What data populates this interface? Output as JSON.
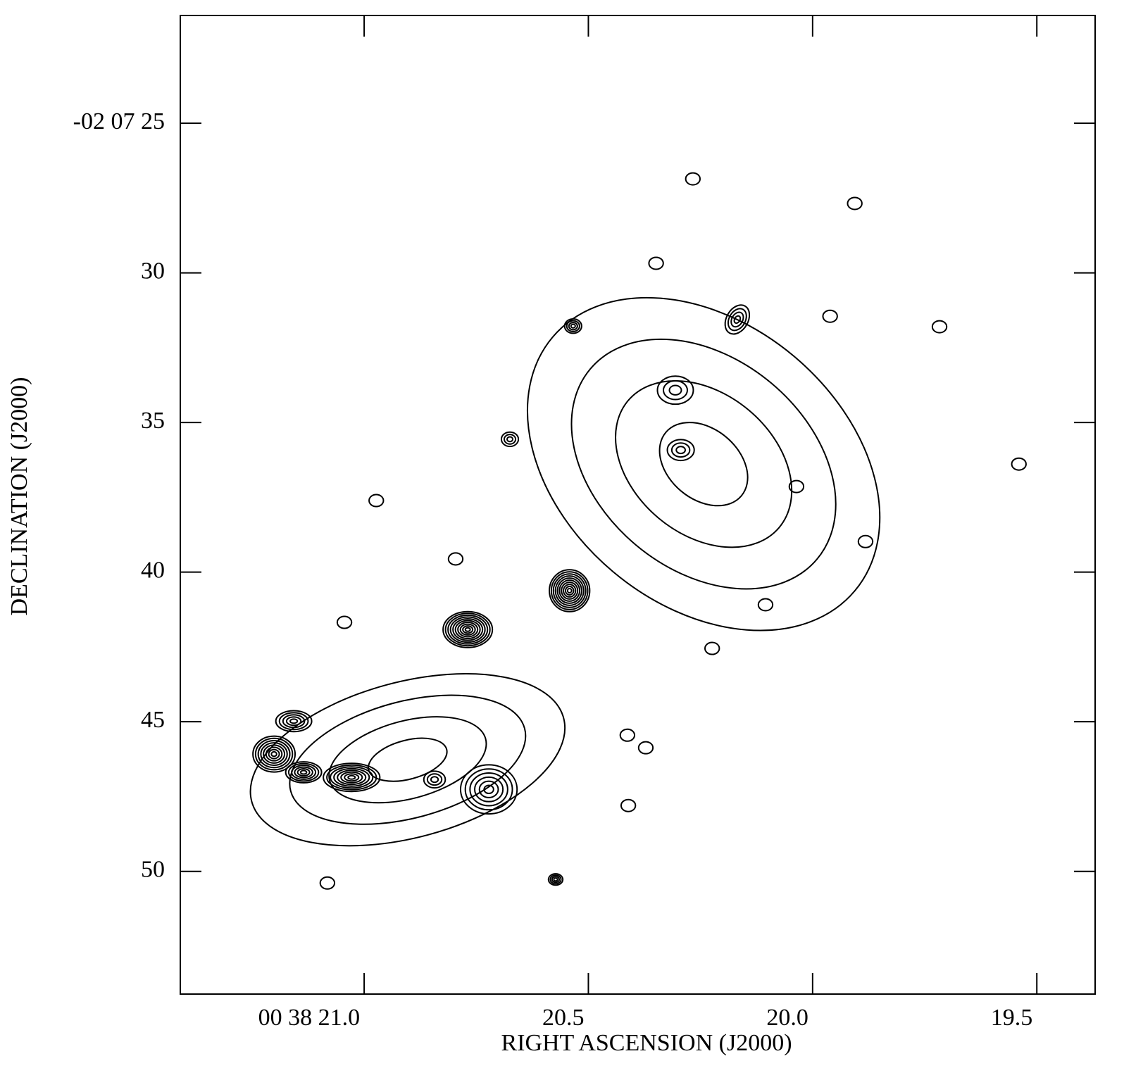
{
  "chart_data": {
    "type": "contour",
    "x_label": "RIGHT ASCENSION (J2000)",
    "y_label": "DECLINATION (J2000)",
    "xlim": [
      21.41,
      19.37
    ],
    "ylim": [
      21.4,
      54.1
    ],
    "xticks": [
      {
        "value": 21.0,
        "label": "00 38 21.0"
      },
      20.5,
      {
        "value": 20.0,
        "label": "20.0"
      },
      19.5
    ],
    "yticks": [
      {
        "value": 25,
        "label": "-02 07 25"
      },
      30,
      35,
      40,
      45,
      50
    ],
    "color": "#000000",
    "components": {
      "x": [
        20.243,
        20.306,
        20.294,
        20.542,
        20.769,
        20.903,
        21.201,
        21.028,
        21.135,
        21.157,
        20.722,
        20.843,
        20.573,
        20.534,
        20.675,
        20.168,
        19.906,
        19.961,
        20.105,
        20.224,
        20.267,
        20.349,
        19.882,
        19.717,
        19.54,
        20.973,
        21.044,
        20.796,
        21.082,
        20.413,
        20.372,
        20.411,
        20.036
      ],
      "y": [
        36.39,
        33.92,
        35.92,
        40.62,
        41.92,
        46.27,
        46.08,
        46.86,
        46.69,
        44.98,
        47.26,
        46.93,
        50.27,
        31.78,
        35.56,
        31.56,
        27.68,
        31.45,
        41.09,
        42.55,
        26.86,
        29.68,
        38.98,
        31.8,
        36.39,
        37.61,
        41.68,
        39.56,
        50.39,
        45.45,
        45.87,
        47.8,
        37.14
      ],
      "rx": [
        0.44,
        0.04,
        0.03,
        0.045,
        0.055,
        0.36,
        0.047,
        0.063,
        0.04,
        0.04,
        0.063,
        0.024,
        0.016,
        0.019,
        0.019,
        0.024,
        0.016,
        0.016,
        0.016,
        0.016,
        0.016,
        0.016,
        0.016,
        0.016,
        0.016,
        0.016,
        0.016,
        0.016,
        0.016,
        0.016,
        0.016,
        0.016,
        0.016
      ],
      "ry": [
        4.7,
        0.47,
        0.35,
        0.7,
        0.6,
        2.6,
        0.6,
        0.47,
        0.35,
        0.35,
        0.82,
        0.28,
        0.19,
        0.24,
        0.24,
        0.52,
        0.2,
        0.2,
        0.2,
        0.2,
        0.2,
        0.2,
        0.2,
        0.2,
        0.2,
        0.2,
        0.2,
        0.2,
        0.2,
        0.2,
        0.2,
        0.2,
        0.2
      ],
      "angle": [
        40,
        0,
        0,
        0,
        0,
        -15,
        0,
        0,
        0,
        0,
        0,
        0,
        0,
        0,
        0,
        30,
        0,
        0,
        0,
        0,
        0,
        0,
        0,
        0,
        0,
        0,
        0,
        0,
        0,
        0,
        0,
        0,
        0
      ],
      "levels": [
        4,
        3,
        3,
        10,
        10,
        4,
        8,
        8,
        6,
        5,
        6,
        3,
        4,
        4,
        3,
        4,
        1,
        1,
        1,
        1,
        1,
        1,
        1,
        1,
        1,
        1,
        1,
        1,
        1,
        1,
        1,
        1,
        1
      ]
    }
  }
}
